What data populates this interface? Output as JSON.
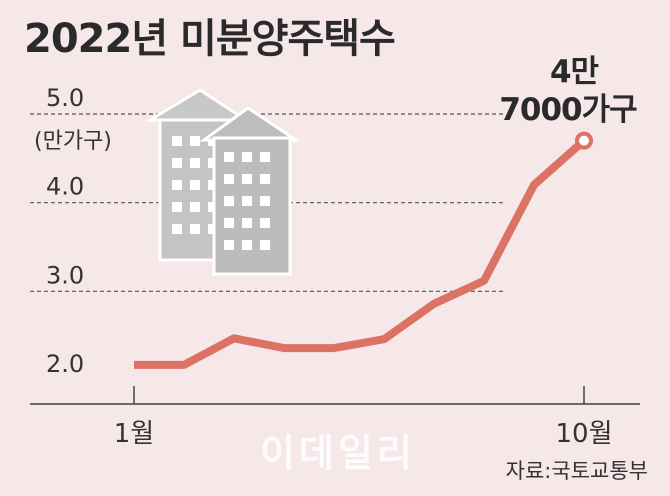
{
  "chart_data": {
    "type": "line",
    "title": "2022년 미분양주택수",
    "unit_label": "(만가구)",
    "x_tick_labels": [
      "1월",
      "10월"
    ],
    "x": [
      1,
      2,
      3,
      4,
      5,
      6,
      7,
      8,
      9,
      10
    ],
    "values": [
      2.17,
      2.17,
      2.47,
      2.36,
      2.36,
      2.46,
      2.86,
      3.12,
      4.2,
      4.7
    ],
    "y_ticks": [
      {
        "value": 2.0,
        "label": "2.0"
      },
      {
        "value": 3.0,
        "label": "3.0"
      },
      {
        "value": 4.0,
        "label": "4.0"
      },
      {
        "value": 5.0,
        "label": "5.0"
      }
    ],
    "ylim": [
      1.8,
      5.2
    ],
    "xlim": [
      1,
      10
    ],
    "grid": true,
    "annotation": {
      "line1": "4만",
      "line2": "7000가구"
    },
    "source": "자료:국토교통부",
    "watermark": "이데일리",
    "colors": {
      "line": "#dc7264",
      "background": "#f6e7e9",
      "building": "#c4c4c4"
    },
    "decoration_icon": "apartment-buildings-icon"
  }
}
